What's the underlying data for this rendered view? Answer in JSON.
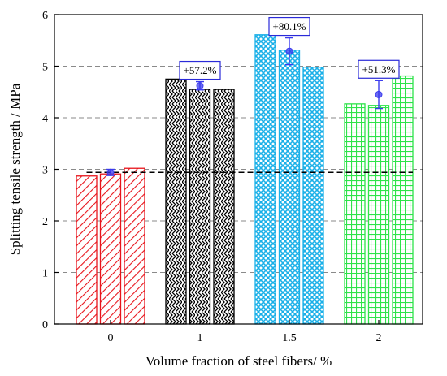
{
  "chart_data": {
    "type": "bar",
    "title": "",
    "xlabel": "Volume fraction of steel fibers/ %",
    "ylabel": "Splitting tensile strength / MPa",
    "ylim": [
      0,
      6
    ],
    "yticks": [
      0,
      1,
      2,
      3,
      4,
      5,
      6
    ],
    "grid": "horizontal dashed",
    "categories": [
      "0",
      "1",
      "1.5",
      "2"
    ],
    "groups": [
      {
        "category": "0",
        "color": "#e8141b",
        "pattern": "diagonal-hatch",
        "specimens": [
          2.87,
          2.91,
          3.02
        ],
        "mean": 2.94,
        "error": 0.06,
        "annotation": ""
      },
      {
        "category": "1",
        "color": "#000000",
        "pattern": "zigzag",
        "specimens": [
          4.75,
          4.55,
          4.55
        ],
        "mean": 4.62,
        "error": 0.08,
        "annotation": "+57.2%"
      },
      {
        "category": "1.5",
        "color": "#1ab0e8",
        "pattern": "crosshatch",
        "specimens": [
          5.61,
          5.31,
          4.98
        ],
        "mean": 5.29,
        "error": 0.26,
        "annotation": "+80.1%"
      },
      {
        "category": "2",
        "color": "#2ee34a",
        "pattern": "grid",
        "specimens": [
          4.27,
          4.24,
          4.81
        ],
        "mean": 4.45,
        "error": 0.27,
        "annotation": "+51.3%"
      }
    ],
    "mean_marker_color": "#3a3aee",
    "reference_line": {
      "y": 2.94,
      "style": "dashed",
      "color": "#000000"
    }
  }
}
